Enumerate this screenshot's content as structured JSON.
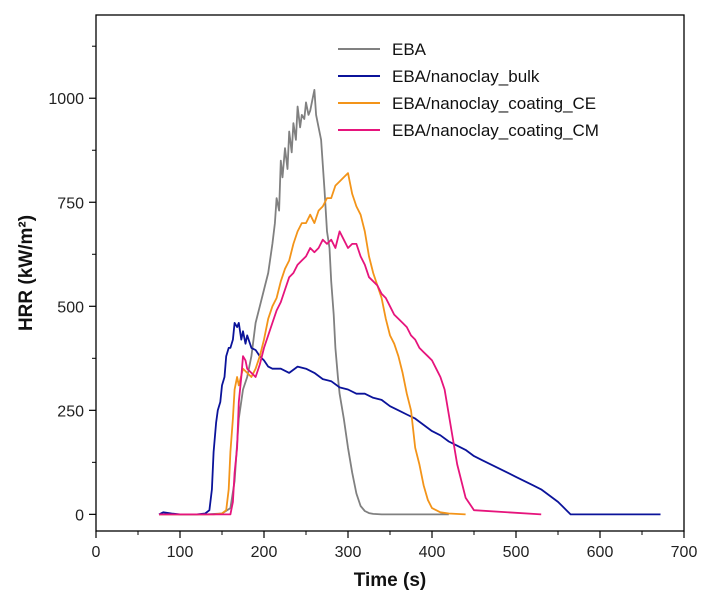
{
  "chart_data": {
    "type": "line",
    "xlabel": "Time (s)",
    "ylabel": "HRR (kW/m²)",
    "xlim": [
      0,
      700
    ],
    "ylim": [
      -40,
      1200
    ],
    "xticks": [
      0,
      100,
      200,
      300,
      400,
      500,
      600,
      700
    ],
    "yticks": [
      0,
      250,
      500,
      750,
      1000
    ],
    "legend_position": "top-right",
    "series": [
      {
        "name": "EBA",
        "color": "#808080",
        "x": [
          75,
          100,
          130,
          150,
          160,
          165,
          170,
          175,
          180,
          185,
          190,
          195,
          200,
          205,
          210,
          213,
          215,
          218,
          220,
          222,
          225,
          228,
          230,
          233,
          235,
          238,
          240,
          243,
          245,
          248,
          250,
          253,
          255,
          258,
          260,
          262,
          265,
          268,
          270,
          272,
          275,
          278,
          280,
          283,
          285,
          288,
          290,
          295,
          300,
          305,
          310,
          315,
          320,
          325,
          330,
          340,
          350,
          380,
          420
        ],
        "y": [
          0,
          0,
          0,
          2,
          15,
          80,
          230,
          300,
          330,
          380,
          460,
          500,
          540,
          580,
          650,
          700,
          760,
          730,
          850,
          810,
          880,
          830,
          920,
          870,
          940,
          900,
          980,
          930,
          960,
          950,
          990,
          960,
          970,
          1000,
          1020,
          960,
          930,
          900,
          840,
          780,
          680,
          640,
          560,
          480,
          400,
          330,
          290,
          230,
          160,
          100,
          50,
          20,
          8,
          3,
          1,
          0,
          0,
          0,
          0
        ]
      },
      {
        "name": "EBA/nanoclay_bulk",
        "color": "#0b139a",
        "x": [
          75,
          80,
          90,
          100,
          120,
          130,
          135,
          138,
          140,
          143,
          145,
          148,
          150,
          153,
          155,
          158,
          160,
          163,
          165,
          168,
          170,
          173,
          175,
          178,
          180,
          185,
          190,
          195,
          200,
          205,
          210,
          220,
          230,
          240,
          250,
          260,
          270,
          280,
          290,
          300,
          310,
          320,
          330,
          340,
          350,
          360,
          370,
          380,
          390,
          400,
          410,
          420,
          430,
          440,
          450,
          460,
          470,
          480,
          490,
          500,
          510,
          520,
          530,
          540,
          550,
          555,
          560,
          565,
          570,
          600,
          672
        ],
        "y": [
          0,
          5,
          2,
          0,
          0,
          2,
          10,
          60,
          150,
          220,
          250,
          270,
          310,
          330,
          380,
          400,
          400,
          420,
          460,
          450,
          460,
          420,
          440,
          410,
          430,
          400,
          395,
          380,
          370,
          355,
          350,
          350,
          340,
          355,
          350,
          340,
          325,
          320,
          305,
          300,
          290,
          290,
          280,
          275,
          260,
          250,
          240,
          230,
          215,
          200,
          190,
          175,
          165,
          155,
          140,
          130,
          120,
          110,
          100,
          90,
          80,
          70,
          60,
          45,
          30,
          20,
          10,
          0,
          0,
          0,
          0
        ]
      },
      {
        "name": "EBA/nanoclay_coating_CE",
        "color": "#f39419",
        "x": [
          75,
          100,
          140,
          150,
          155,
          158,
          160,
          163,
          165,
          168,
          170,
          175,
          180,
          185,
          190,
          195,
          200,
          205,
          210,
          215,
          220,
          225,
          230,
          235,
          240,
          245,
          250,
          255,
          260,
          265,
          270,
          275,
          280,
          285,
          290,
          295,
          300,
          305,
          310,
          315,
          320,
          325,
          330,
          335,
          340,
          345,
          350,
          355,
          360,
          365,
          370,
          375,
          380,
          385,
          390,
          395,
          400,
          410,
          420,
          440
        ],
        "y": [
          0,
          0,
          0,
          2,
          10,
          60,
          150,
          230,
          300,
          330,
          310,
          350,
          340,
          330,
          350,
          380,
          420,
          470,
          500,
          520,
          560,
          590,
          610,
          650,
          680,
          700,
          700,
          720,
          700,
          730,
          740,
          760,
          760,
          790,
          800,
          810,
          820,
          770,
          740,
          720,
          680,
          620,
          580,
          550,
          520,
          470,
          430,
          410,
          380,
          340,
          290,
          250,
          160,
          120,
          70,
          35,
          15,
          5,
          2,
          0
        ]
      },
      {
        "name": "EBA/nanoclay_coating_CM",
        "color": "#e6147c",
        "x": [
          75,
          100,
          150,
          160,
          163,
          165,
          168,
          170,
          173,
          175,
          178,
          180,
          185,
          190,
          195,
          200,
          205,
          210,
          215,
          220,
          225,
          230,
          235,
          240,
          245,
          250,
          255,
          260,
          265,
          270,
          275,
          280,
          285,
          290,
          295,
          300,
          305,
          310,
          315,
          320,
          325,
          330,
          335,
          340,
          345,
          350,
          355,
          360,
          365,
          370,
          375,
          380,
          385,
          390,
          395,
          400,
          405,
          410,
          415,
          420,
          425,
          430,
          440,
          450,
          530
        ],
        "y": [
          0,
          0,
          0,
          0,
          30,
          100,
          160,
          270,
          330,
          380,
          370,
          350,
          340,
          330,
          360,
          400,
          430,
          460,
          490,
          510,
          540,
          570,
          580,
          600,
          610,
          620,
          640,
          630,
          640,
          660,
          650,
          660,
          640,
          680,
          660,
          640,
          650,
          650,
          620,
          600,
          570,
          560,
          550,
          530,
          520,
          500,
          480,
          470,
          460,
          450,
          430,
          420,
          400,
          390,
          380,
          370,
          350,
          330,
          300,
          240,
          180,
          120,
          40,
          10,
          0
        ]
      }
    ]
  }
}
